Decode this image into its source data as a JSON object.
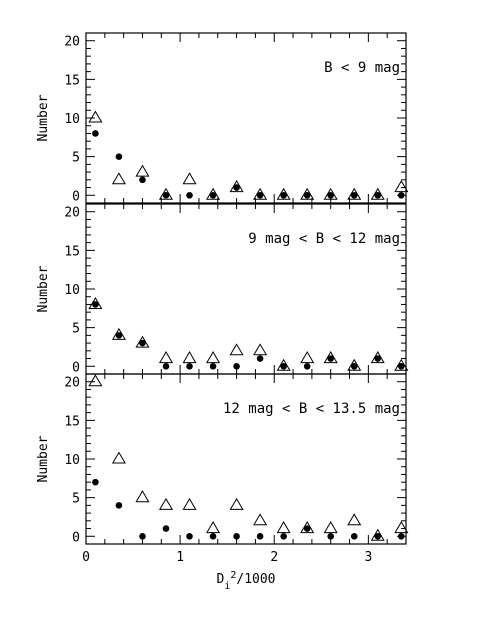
{
  "chart_data": {
    "type": "scatter",
    "xlabel": "Di2/1000",
    "xlabel_main": "D",
    "xlabel_sub": "i",
    "xlabel_sup": "2",
    "xlabel_tail": "/1000",
    "xlim": [
      0,
      3.4
    ],
    "x_ticks": [
      0,
      1,
      2,
      3
    ],
    "x_tick_labels": [
      "0",
      "1",
      "2",
      "3"
    ],
    "x": [
      0.1,
      0.35,
      0.6,
      0.85,
      1.1,
      1.35,
      1.6,
      1.85,
      2.1,
      2.35,
      2.6,
      2.85,
      3.1,
      3.35
    ],
    "grid": false,
    "panels": [
      {
        "label": "B < 9 mag",
        "ylabel": "Number",
        "ylim": [
          -1,
          21
        ],
        "y_ticks": [
          0,
          5,
          10,
          15,
          20
        ],
        "y_tick_labels": [
          "0",
          "5",
          "10",
          "15",
          "20"
        ],
        "series": [
          {
            "marker": "open-triangle",
            "values": [
              10,
              2,
              3,
              0,
              2,
              0,
              1,
              0,
              0,
              0,
              0,
              0,
              0,
              1
            ]
          },
          {
            "marker": "filled-circle",
            "values": [
              8,
              5,
              2,
              0,
              0,
              0,
              1,
              0,
              0,
              0,
              0,
              0,
              0,
              0
            ]
          }
        ]
      },
      {
        "label": "9 mag < B < 12 mag",
        "ylabel": "Number",
        "ylim": [
          -1,
          21
        ],
        "y_ticks": [
          0,
          5,
          10,
          15,
          20
        ],
        "y_tick_labels": [
          "0",
          "5",
          "10",
          "15",
          "20"
        ],
        "series": [
          {
            "marker": "open-triangle",
            "values": [
              8,
              4,
              3,
              1,
              1,
              1,
              2,
              2,
              0,
              1,
              1,
              0,
              1,
              0
            ]
          },
          {
            "marker": "filled-circle",
            "values": [
              8,
              4,
              3,
              0,
              0,
              0,
              0,
              1,
              0,
              0,
              1,
              0,
              1,
              0
            ]
          }
        ]
      },
      {
        "label": "12 mag < B < 13.5 mag",
        "ylabel": "Number",
        "ylim": [
          -1,
          21
        ],
        "y_ticks": [
          0,
          5,
          10,
          15,
          20
        ],
        "y_tick_labels": [
          "0",
          "5",
          "10",
          "15",
          "20"
        ],
        "series": [
          {
            "marker": "open-triangle",
            "values": [
              20,
              10,
              5,
              4,
              4,
              1,
              4,
              2,
              1,
              1,
              1,
              2,
              0,
              1
            ]
          },
          {
            "marker": "filled-circle",
            "values": [
              7,
              4,
              0,
              1,
              0,
              0,
              0,
              0,
              0,
              1,
              0,
              0,
              0,
              0
            ]
          }
        ]
      }
    ]
  }
}
